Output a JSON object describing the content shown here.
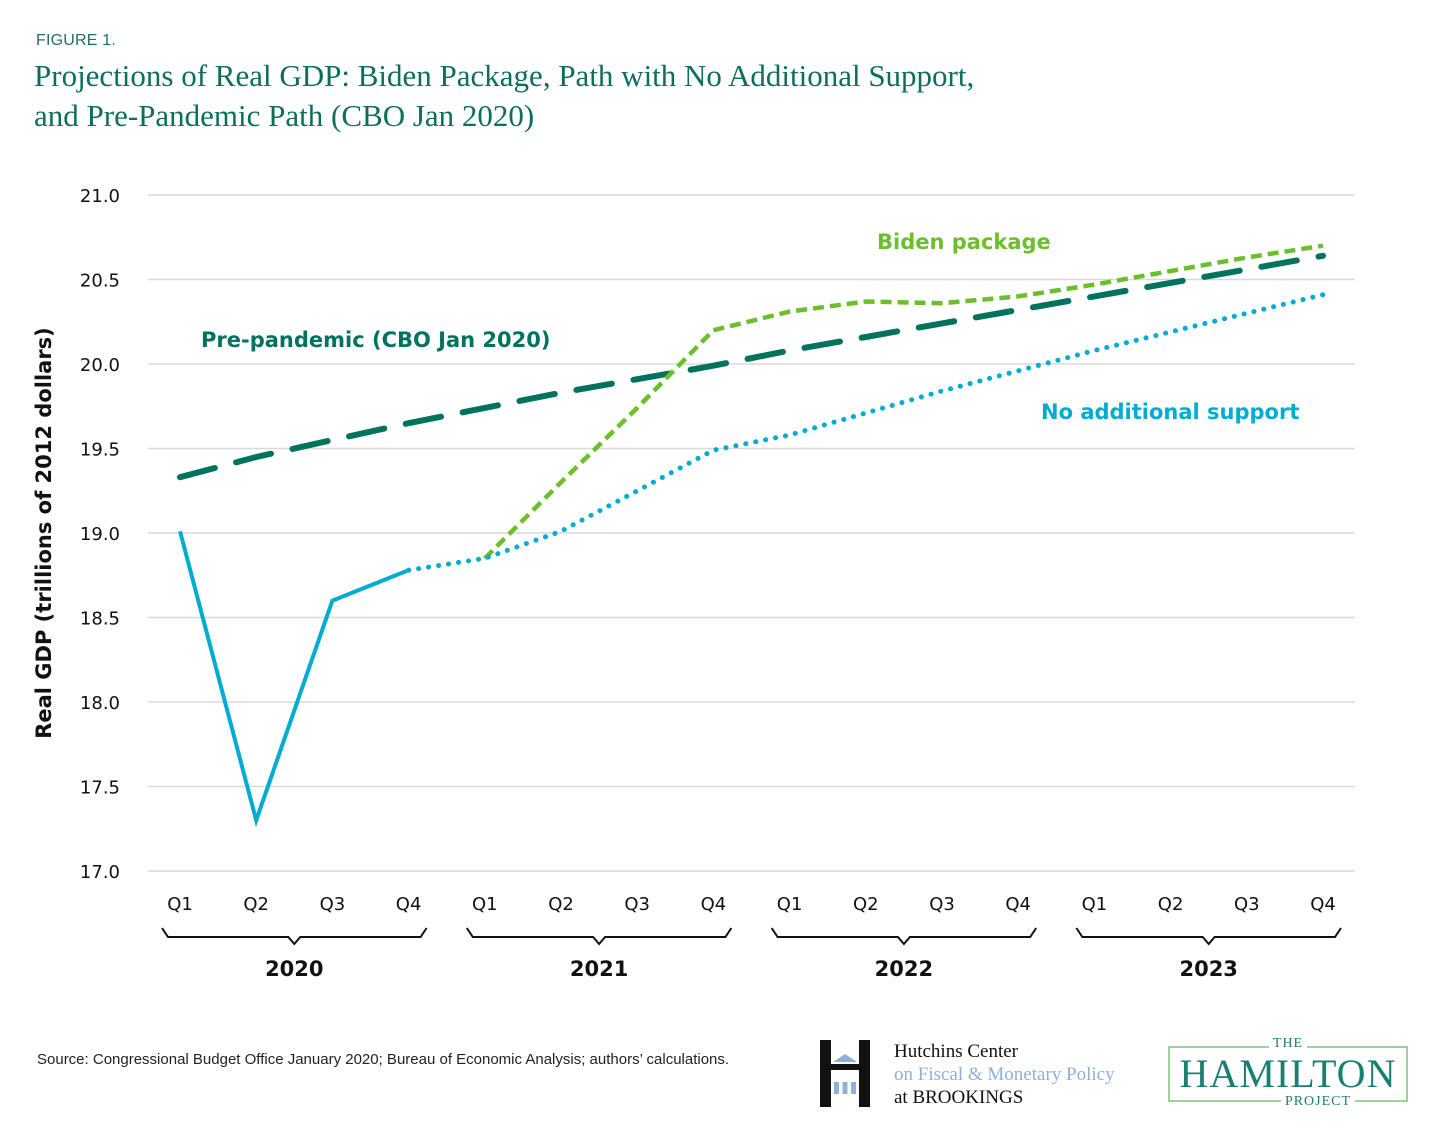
{
  "figure_label": "FIGURE 1.",
  "title_line1": "Projections of Real GDP: Biden Package, Path with No Additional Support,",
  "title_line2": "and Pre-Pandemic Path (CBO Jan 2020)",
  "source": "Source: Congressional Budget Office January 2020; Bureau of Economic Analysis; authors’ calculations.",
  "logos": {
    "hutchins": {
      "line1": "Hutchins Center",
      "line2": "on Fiscal & Monetary Policy",
      "line3": "at BROOKINGS"
    },
    "hamilton": {
      "top": "THE",
      "main": "HAMILTON",
      "bottom": "PROJECT"
    }
  },
  "colors": {
    "pre_pandemic": "#00735f",
    "biden": "#6cbf2c",
    "no_support": "#00acd1",
    "grid": "#d9d9d9",
    "title": "#0e6e5e"
  },
  "chart_data": {
    "type": "line",
    "title": "Projections of Real GDP: Biden Package, Path with No Additional Support, and Pre-Pandemic Path (CBO Jan 2020)",
    "xlabel": "",
    "ylabel": "Real GDP (trillions of 2012 dollars)",
    "ylim": [
      17.0,
      21.0
    ],
    "yticks": [
      "17.0",
      "17.5",
      "18.0",
      "18.5",
      "19.0",
      "19.5",
      "20.0",
      "20.5",
      "21.0"
    ],
    "grid": true,
    "x": [
      "Q1 2020",
      "Q2 2020",
      "Q3 2020",
      "Q4 2020",
      "Q1 2021",
      "Q2 2021",
      "Q3 2021",
      "Q4 2021",
      "Q1 2022",
      "Q2 2022",
      "Q3 2022",
      "Q4 2022",
      "Q1 2023",
      "Q2 2023",
      "Q3 2023",
      "Q4 2023"
    ],
    "quarter_labels": [
      "Q1",
      "Q2",
      "Q3",
      "Q4",
      "Q1",
      "Q2",
      "Q3",
      "Q4",
      "Q1",
      "Q2",
      "Q3",
      "Q4",
      "Q1",
      "Q2",
      "Q3",
      "Q4"
    ],
    "year_groups": [
      {
        "label": "2020",
        "start": 0,
        "end": 3
      },
      {
        "label": "2021",
        "start": 4,
        "end": 7
      },
      {
        "label": "2022",
        "start": 8,
        "end": 11
      },
      {
        "label": "2023",
        "start": 12,
        "end": 15
      }
    ],
    "series": [
      {
        "name": "Pre-pandemic (CBO Jan 2020)",
        "key": "pre_pandemic",
        "style": "long-dash",
        "values": [
          19.33,
          19.45,
          19.55,
          19.65,
          19.74,
          19.83,
          19.91,
          19.99,
          20.08,
          20.16,
          20.24,
          20.32,
          20.4,
          20.48,
          20.56,
          20.64
        ]
      },
      {
        "name": "Biden package",
        "key": "biden",
        "style": "short-dash",
        "start_index": 4,
        "values": [
          null,
          null,
          null,
          null,
          18.85,
          19.3,
          19.74,
          20.2,
          20.31,
          20.37,
          20.36,
          20.4,
          20.47,
          20.55,
          20.63,
          20.7
        ]
      },
      {
        "name": "No additional support",
        "key": "no_support",
        "style": "solid-then-dotted",
        "actual_through_index": 3,
        "values": [
          19.01,
          17.3,
          18.6,
          18.78,
          18.85,
          19.01,
          19.25,
          19.49,
          19.58,
          19.71,
          19.84,
          19.96,
          20.08,
          20.19,
          20.3,
          20.41
        ]
      }
    ],
    "annotations": [
      {
        "text": "Biden package",
        "series": "biden"
      },
      {
        "text": "Pre-pandemic (CBO Jan 2020)",
        "series": "pre_pandemic"
      },
      {
        "text": "No additional support",
        "series": "no_support"
      }
    ],
    "legend": "inline labels"
  }
}
